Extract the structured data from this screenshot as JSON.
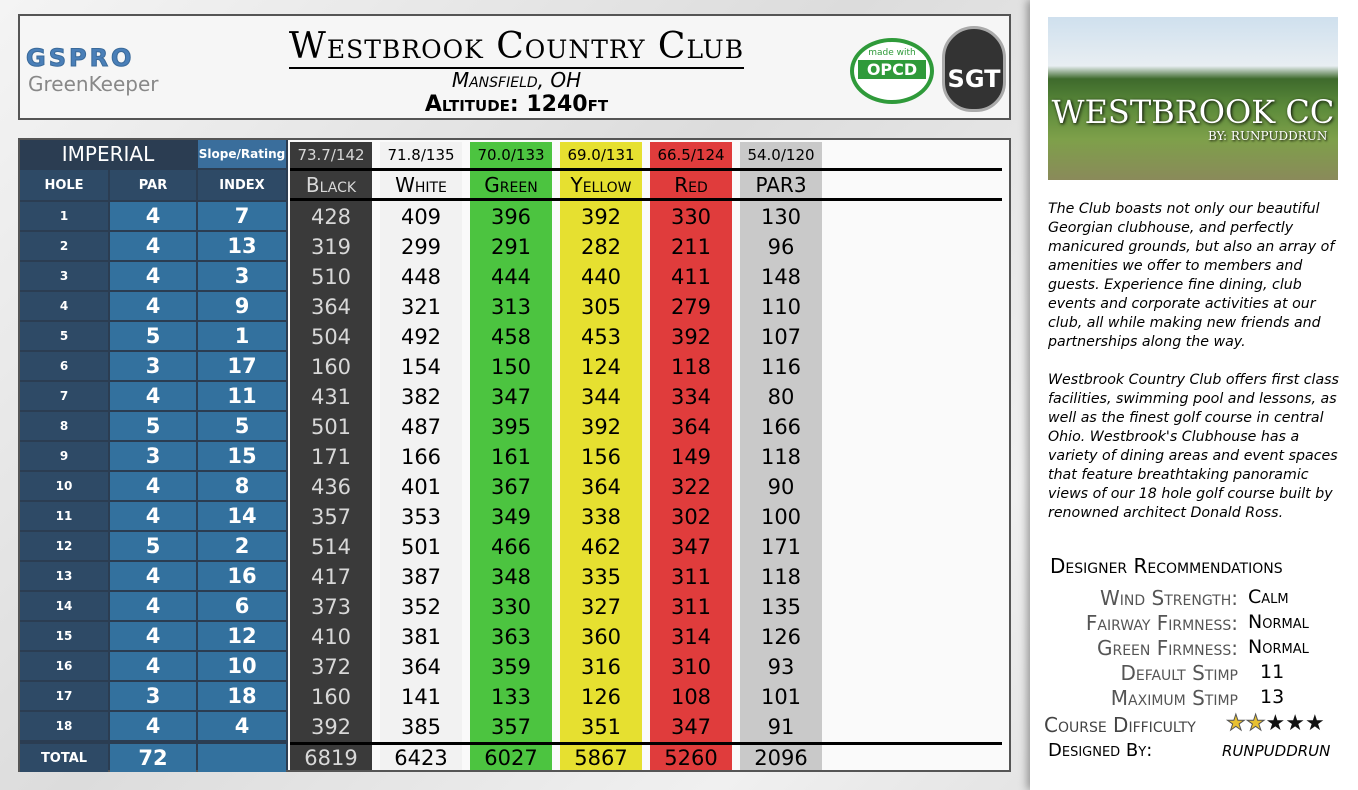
{
  "header": {
    "logo_top": "GSPRO",
    "logo_bottom": "GreenKeeper",
    "title": "Westbrook Country Club",
    "location": "Mansfield, OH",
    "altitude": "Altitude: 1240ft",
    "badge_opcd_top": "made with",
    "badge_opcd": "OPCD",
    "badge_sgt": "SGT"
  },
  "table": {
    "system": "IMPERIAL",
    "slope_label": "Slope/Rating",
    "columns": [
      "HOLE",
      "PAR",
      "INDEX"
    ],
    "tees": [
      {
        "rating": "73.7/142",
        "name": "Black"
      },
      {
        "rating": "71.8/135",
        "name": "White"
      },
      {
        "rating": "70.0/133",
        "name": "Green"
      },
      {
        "rating": "69.0/131",
        "name": "Yellow"
      },
      {
        "rating": "66.5/124",
        "name": "Red"
      },
      {
        "rating": "54.0/120",
        "name": "PAR3"
      }
    ],
    "rows": [
      [
        1,
        4,
        7,
        428,
        409,
        396,
        392,
        330,
        130
      ],
      [
        2,
        4,
        13,
        319,
        299,
        291,
        282,
        211,
        96
      ],
      [
        3,
        4,
        3,
        510,
        448,
        444,
        440,
        411,
        148
      ],
      [
        4,
        4,
        9,
        364,
        321,
        313,
        305,
        279,
        110
      ],
      [
        5,
        5,
        1,
        504,
        492,
        458,
        453,
        392,
        107
      ],
      [
        6,
        3,
        17,
        160,
        154,
        150,
        124,
        118,
        116
      ],
      [
        7,
        4,
        11,
        431,
        382,
        347,
        344,
        334,
        80
      ],
      [
        8,
        5,
        5,
        501,
        487,
        395,
        392,
        364,
        166
      ],
      [
        9,
        3,
        15,
        171,
        166,
        161,
        156,
        149,
        118
      ],
      [
        10,
        4,
        8,
        436,
        401,
        367,
        364,
        322,
        90
      ],
      [
        11,
        4,
        14,
        357,
        353,
        349,
        338,
        302,
        100
      ],
      [
        12,
        5,
        2,
        514,
        501,
        466,
        462,
        347,
        171
      ],
      [
        13,
        4,
        16,
        417,
        387,
        348,
        335,
        311,
        118
      ],
      [
        14,
        4,
        6,
        373,
        352,
        330,
        327,
        311,
        135
      ],
      [
        15,
        4,
        12,
        410,
        381,
        363,
        360,
        314,
        126
      ],
      [
        16,
        4,
        10,
        372,
        364,
        359,
        316,
        310,
        93
      ],
      [
        17,
        3,
        18,
        160,
        141,
        133,
        126,
        108,
        101
      ],
      [
        18,
        4,
        4,
        392,
        385,
        357,
        351,
        347,
        91
      ]
    ],
    "total": {
      "label": "TOTAL",
      "par": 72,
      "yards": [
        6819,
        6423,
        6027,
        5867,
        5260,
        2096
      ]
    }
  },
  "sidebar": {
    "image_title": "WESTBROOK CC",
    "image_byline": "BY: RUNPUDDRUN",
    "paragraphs": [
      "The Club boasts not only our beautiful Georgian clubhouse, and perfectly manicured grounds, but also an array of amenities we offer to members and guests. Experience fine dining, club events and corporate activities at our club, all while making new friends and partnerships along the way.",
      "Westbrook Country Club offers first class facilities, swimming pool and lessons, as well as the finest golf course in central Ohio. Westbrook's Clubhouse has a variety of dining areas and event spaces that feature breathtaking panoramic views of our 18 hole golf course built by renowned architect Donald Ross."
    ],
    "recommendations_title": "Designer Recommendations",
    "recommendations": [
      {
        "label": "Wind Strength:",
        "value": "Calm"
      },
      {
        "label": "Fairway Firmness:",
        "value": "Normal"
      },
      {
        "label": "Green Firmness:",
        "value": "Normal"
      },
      {
        "label": "Default Stimp",
        "value": 11
      },
      {
        "label": "Maximum Stimp",
        "value": 13
      }
    ],
    "difficulty": {
      "label": "Course Difficulty",
      "rating": 2,
      "max": 5
    },
    "designer": {
      "label": "Designed By:",
      "name": "RUNPUDDRUN"
    }
  }
}
